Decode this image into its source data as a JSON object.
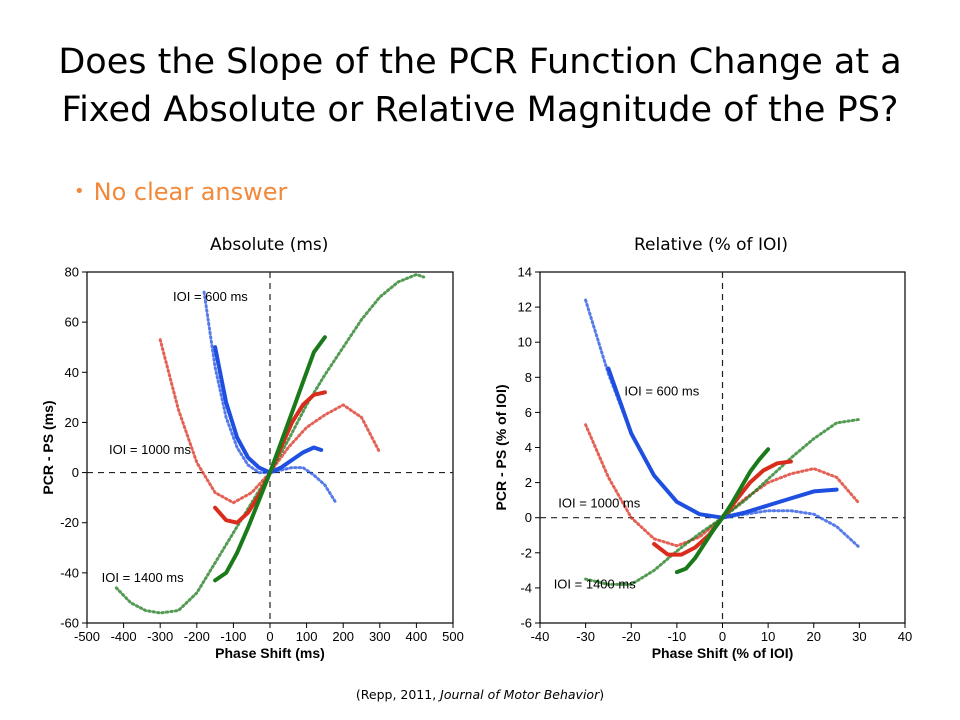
{
  "slide": {
    "title_line1": "Does the Slope of the PCR Function Change at a",
    "title_line2": "Fixed Absolute or Relative Magnitude of the PS?",
    "bullet": "No clear answer",
    "citation_prefix": "(Repp, 2011, ",
    "citation_journal": "Journal of Motor Behavior",
    "citation_suffix": ")"
  },
  "colors": {
    "blue": "#1f4fe0",
    "red": "#d92c1c",
    "green": "#1a7a1a",
    "bullet": "#f2893a"
  },
  "chart_data": [
    {
      "type": "line",
      "label": "Absolute (ms)",
      "xlabel": "Phase Shift (ms)",
      "ylabel": "PCR - PS (ms)",
      "xlim": [
        -500,
        500
      ],
      "ylim": [
        -60,
        80
      ],
      "xticks": [
        -500,
        -400,
        -300,
        -200,
        -100,
        0,
        100,
        200,
        300,
        400,
        500
      ],
      "yticks": [
        -60,
        -40,
        -20,
        0,
        20,
        40,
        60,
        80
      ],
      "annotations": [
        {
          "text": "IOI = 600 ms",
          "x": -265,
          "y": 70
        },
        {
          "text": "IOI = 1000 ms",
          "x": -440,
          "y": 9
        },
        {
          "text": "IOI = 1400 ms",
          "x": -460,
          "y": -42
        }
      ],
      "series": [
        {
          "color": "blue",
          "style": "dotted",
          "x": [
            -180,
            -150,
            -120,
            -90,
            -60,
            -30,
            0,
            30,
            60,
            90,
            120,
            150,
            180
          ],
          "y": [
            72,
            42,
            22,
            10,
            3,
            0,
            0,
            1,
            2,
            2,
            -1,
            -5,
            -12
          ]
        },
        {
          "color": "blue",
          "style": "solid",
          "x": [
            -150,
            -120,
            -90,
            -60,
            -30,
            0,
            30,
            60,
            90,
            120,
            140
          ],
          "y": [
            50,
            28,
            14,
            6,
            2,
            0,
            2,
            5,
            8,
            10,
            9
          ]
        },
        {
          "color": "red",
          "style": "dotted",
          "x": [
            -300,
            -250,
            -200,
            -150,
            -100,
            -50,
            0,
            50,
            100,
            150,
            200,
            250,
            300
          ],
          "y": [
            53,
            25,
            4,
            -8,
            -12,
            -8,
            0,
            10,
            18,
            23,
            27,
            22,
            8
          ]
        },
        {
          "color": "red",
          "style": "solid",
          "x": [
            -150,
            -120,
            -90,
            -60,
            -30,
            0,
            30,
            60,
            90,
            120,
            150
          ],
          "y": [
            -14,
            -19,
            -20,
            -16,
            -9,
            0,
            10,
            20,
            27,
            31,
            32
          ]
        },
        {
          "color": "green",
          "style": "dotted",
          "x": [
            -420,
            -380,
            -340,
            -300,
            -250,
            -200,
            -150,
            -100,
            -50,
            0,
            50,
            100,
            150,
            200,
            250,
            300,
            350,
            400,
            420
          ],
          "y": [
            -46,
            -52,
            -55,
            -56,
            -55,
            -48,
            -36,
            -24,
            -12,
            0,
            13,
            27,
            39,
            50,
            61,
            70,
            76,
            79,
            78
          ]
        },
        {
          "color": "green",
          "style": "solid",
          "x": [
            -150,
            -120,
            -90,
            -60,
            -30,
            0,
            30,
            60,
            90,
            120,
            150
          ],
          "y": [
            -43,
            -40,
            -32,
            -22,
            -11,
            0,
            12,
            24,
            36,
            48,
            54
          ]
        }
      ]
    },
    {
      "type": "line",
      "label": "Relative (% of IOI)",
      "xlabel": "Phase Shift (% of IOI)",
      "ylabel": "PCR - PS (% of IOI)",
      "xlim": [
        -40,
        40
      ],
      "ylim": [
        -6,
        14
      ],
      "xticks": [
        -40,
        -30,
        -20,
        -10,
        0,
        10,
        20,
        30,
        40
      ],
      "yticks": [
        -6,
        -4,
        -2,
        0,
        2,
        4,
        6,
        8,
        10,
        12,
        14
      ],
      "annotations": [
        {
          "text": "IOI = 600 ms",
          "x": -21.5,
          "y": 7.2
        },
        {
          "text": "IOI = 1000 ms",
          "x": -36,
          "y": 0.8
        },
        {
          "text": "IOI = 1400 ms",
          "x": -37,
          "y": -3.8
        }
      ],
      "series": [
        {
          "color": "blue",
          "style": "dotted",
          "x": [
            -30,
            -25,
            -20,
            -15,
            -10,
            -5,
            0,
            5,
            10,
            15,
            20,
            25,
            30
          ],
          "y": [
            12.4,
            8.2,
            4.8,
            2.4,
            0.9,
            0.2,
            0,
            0.2,
            0.4,
            0.4,
            0.2,
            -0.5,
            -1.7
          ]
        },
        {
          "color": "blue",
          "style": "solid",
          "x": [
            -25,
            -20,
            -15,
            -10,
            -5,
            0,
            5,
            10,
            15,
            20,
            25
          ],
          "y": [
            8.5,
            4.8,
            2.4,
            0.9,
            0.2,
            0,
            0.3,
            0.7,
            1.1,
            1.5,
            1.6
          ]
        },
        {
          "color": "red",
          "style": "dotted",
          "x": [
            -30,
            -25,
            -20,
            -15,
            -10,
            -5,
            0,
            5,
            10,
            15,
            20,
            25,
            30
          ],
          "y": [
            5.3,
            2.3,
            0,
            -1.2,
            -1.6,
            -1.1,
            0,
            1.1,
            2,
            2.5,
            2.8,
            2.3,
            0.8
          ]
        },
        {
          "color": "red",
          "style": "solid",
          "x": [
            -15,
            -12,
            -9,
            -6,
            -3,
            0,
            3,
            6,
            9,
            12,
            15
          ],
          "y": [
            -1.5,
            -2.1,
            -2.1,
            -1.7,
            -1,
            0,
            1,
            2,
            2.7,
            3.1,
            3.2
          ]
        },
        {
          "color": "green",
          "style": "dotted",
          "x": [
            -30,
            -25,
            -20,
            -15,
            -10,
            -5,
            0,
            5,
            10,
            15,
            20,
            25,
            30
          ],
          "y": [
            -3.5,
            -3.8,
            -3.8,
            -3,
            -1.9,
            -0.9,
            0,
            1,
            2.2,
            3.4,
            4.5,
            5.4,
            5.6
          ]
        },
        {
          "color": "green",
          "style": "solid",
          "x": [
            -10,
            -8,
            -6,
            -4,
            -2,
            0,
            2,
            4,
            6,
            8,
            10
          ],
          "y": [
            -3.1,
            -2.9,
            -2.3,
            -1.5,
            -0.7,
            0,
            0.8,
            1.7,
            2.6,
            3.3,
            3.9
          ]
        }
      ]
    }
  ]
}
